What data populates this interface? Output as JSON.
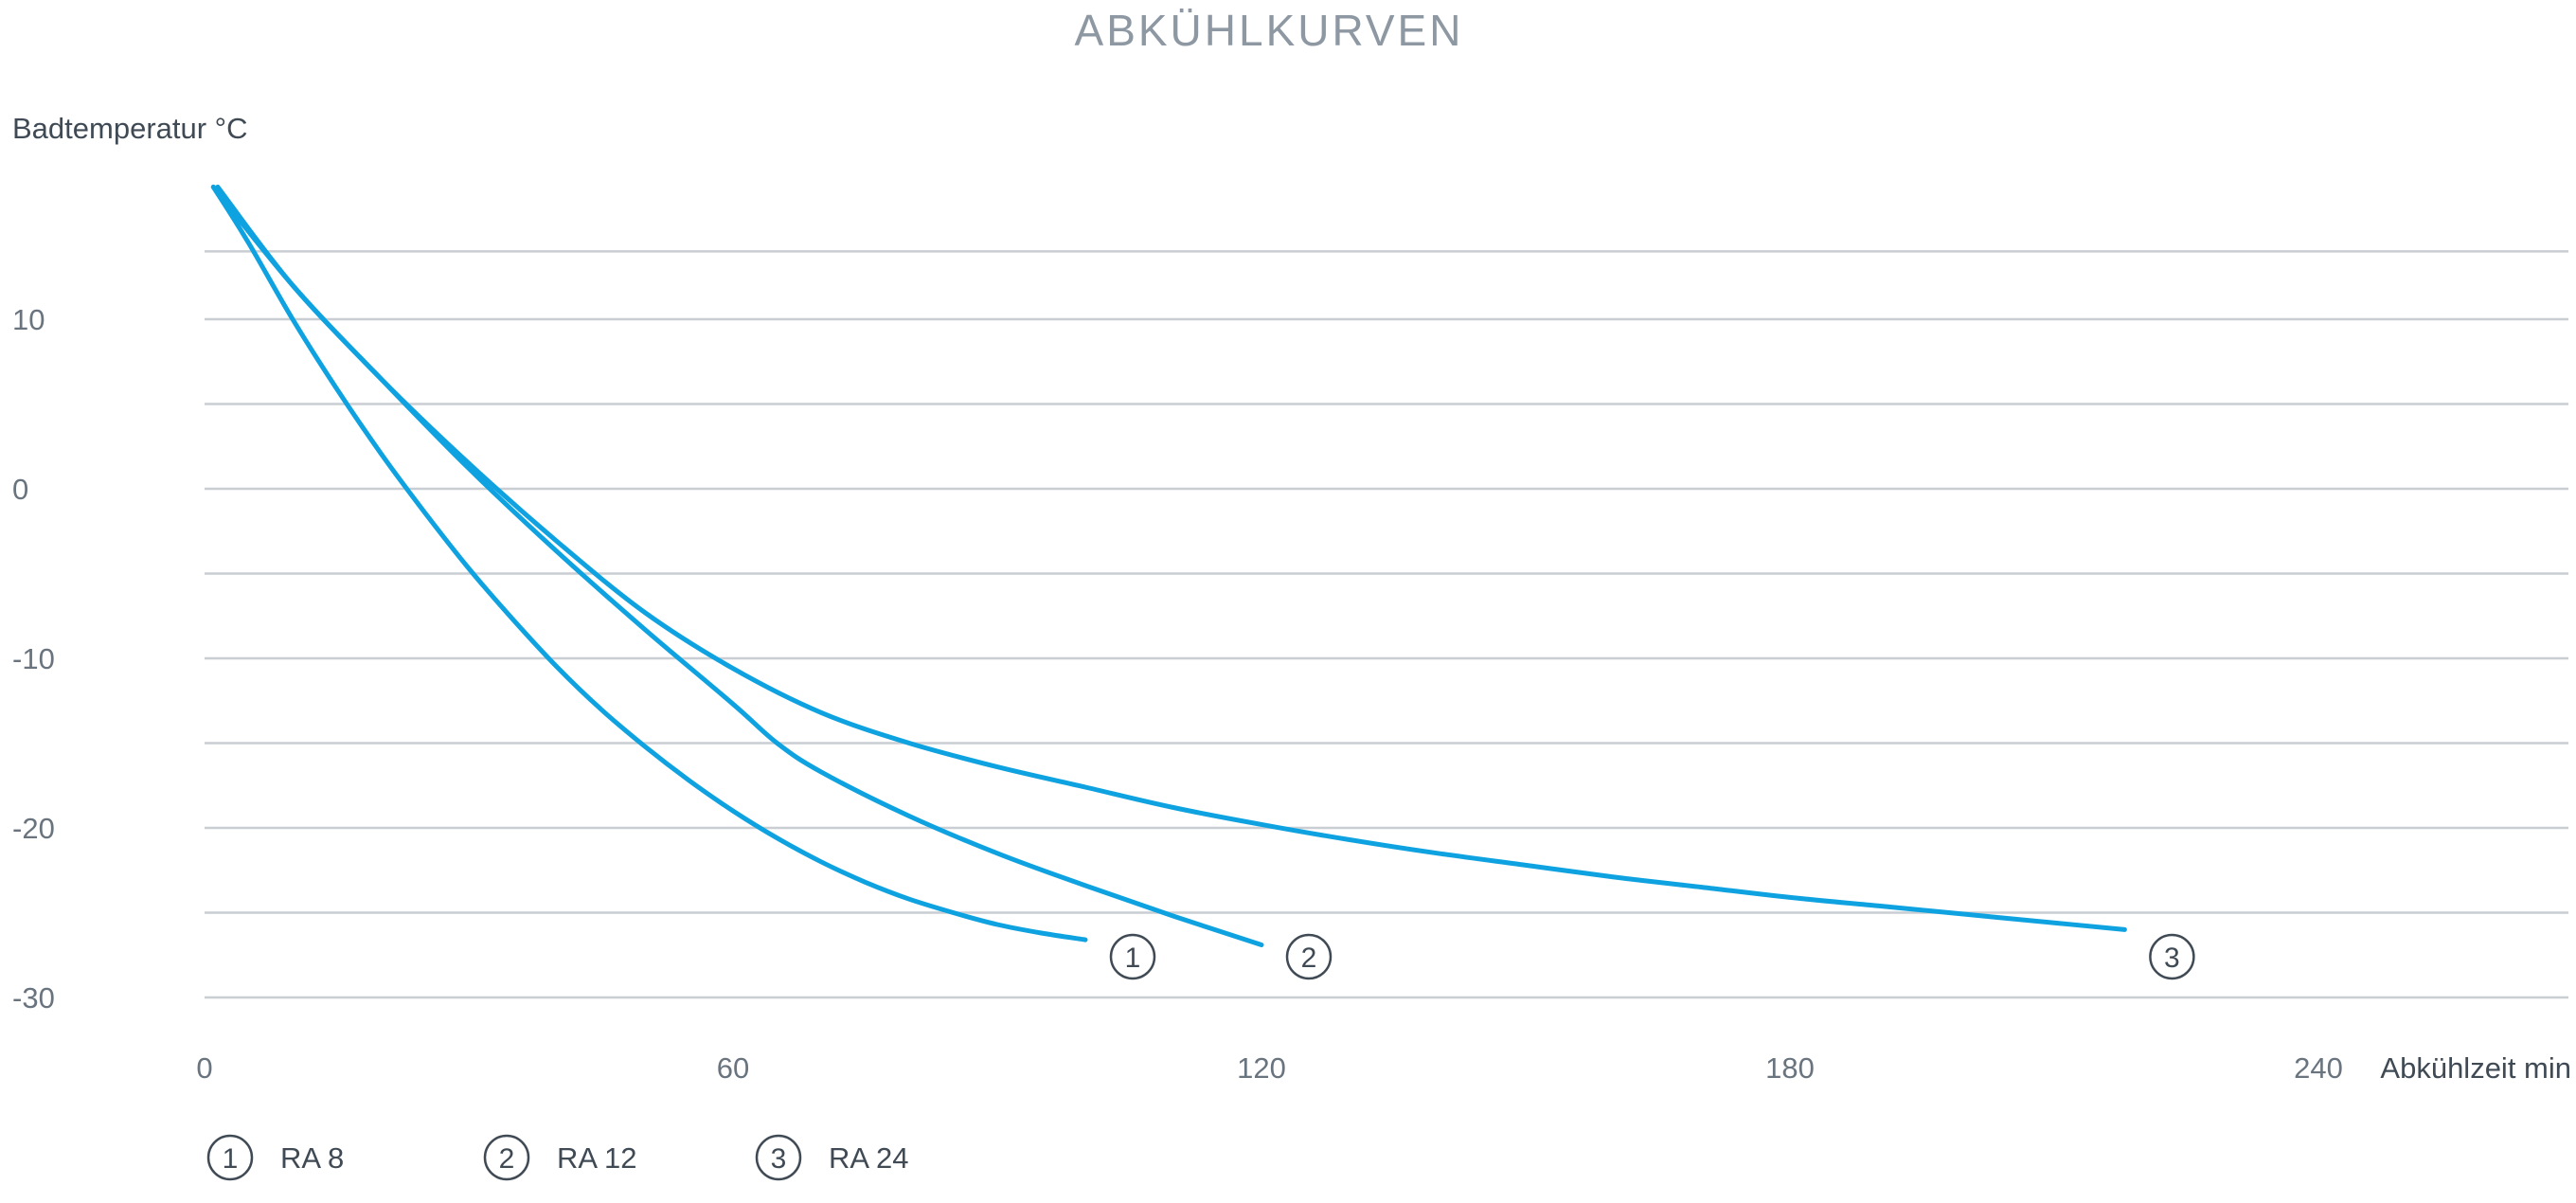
{
  "chart_data": {
    "type": "line",
    "title": "ABKÜHLKURVEN",
    "ylabel": "Badtemperatur °C",
    "xlabel": "Abkühlzeit min",
    "xlim": [
      0,
      268
    ],
    "ylim": [
      -30,
      18
    ],
    "x_ticks": [
      "0",
      "60",
      "120",
      "180",
      "240"
    ],
    "x_tick_values": [
      0,
      60,
      120,
      180,
      240
    ],
    "y_ticks": [
      "10",
      "0",
      "-10",
      "-20",
      "-30"
    ],
    "y_tick_values": [
      10,
      0,
      -10,
      -20,
      -30
    ],
    "grid_y": [
      14,
      10,
      5,
      0,
      -5,
      -10,
      -15,
      -20,
      -25,
      -30
    ],
    "grid": true,
    "legend_position": "bottom-left",
    "series": [
      {
        "marker": "1",
        "name": "RA 8",
        "x": [
          1,
          5,
          10,
          15,
          20,
          25,
          30,
          35,
          40,
          45,
          50,
          55,
          60,
          65,
          70,
          75,
          80,
          85,
          90,
          95,
          100
        ],
        "y": [
          17.8,
          14.5,
          10.0,
          5.9,
          2.1,
          -1.4,
          -4.7,
          -7.7,
          -10.5,
          -13.0,
          -15.2,
          -17.2,
          -19.0,
          -20.6,
          -22.0,
          -23.2,
          -24.2,
          -25.0,
          -25.7,
          -26.2,
          -26.6
        ]
      },
      {
        "marker": "2",
        "name": "RA 12",
        "x": [
          1.5,
          10,
          20,
          30,
          40,
          50,
          60,
          65,
          70,
          80,
          90,
          100,
          110,
          120
        ],
        "y": [
          17.8,
          12.0,
          6.5,
          1.2,
          -3.7,
          -8.3,
          -12.7,
          -15.0,
          -16.7,
          -19.3,
          -21.5,
          -23.4,
          -25.2,
          -26.9
        ]
      },
      {
        "marker": "3",
        "name": "RA 24",
        "x": [
          1,
          10,
          20,
          30,
          40,
          50,
          60,
          70,
          80,
          90,
          100,
          110,
          120,
          130,
          140,
          150,
          160,
          170,
          180,
          190,
          200,
          210,
          218
        ],
        "y": [
          17.8,
          12.0,
          6.5,
          1.5,
          -3.1,
          -7.3,
          -10.6,
          -13.2,
          -15.0,
          -16.4,
          -17.6,
          -18.8,
          -19.8,
          -20.7,
          -21.5,
          -22.2,
          -22.9,
          -23.5,
          -24.1,
          -24.6,
          -25.1,
          -25.6,
          -26.0
        ]
      }
    ]
  }
}
